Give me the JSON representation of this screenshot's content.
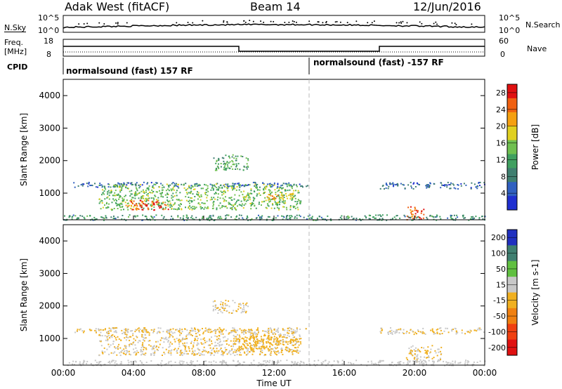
{
  "header": {
    "title": "Adak West (fitACF)",
    "beam": "Beam 14",
    "date": "12/Jun/2016"
  },
  "noise_panel": {
    "left_label": "N.Sky",
    "right_label": "N.Search",
    "tick_high": "10^5",
    "tick_low": "10^0",
    "right_tick_high": "10^5",
    "right_tick_low": "10^0"
  },
  "freq_panel": {
    "left_label_line1": "Freq.",
    "left_label_line2": "[MHz]",
    "tick_high": "18",
    "tick_low": "8",
    "right_label": "Nave",
    "right_tick_high": "60",
    "right_tick_low": "0"
  },
  "cpid_panel": {
    "label": "CPID",
    "mode1": "normalsound (fast) 157 RF",
    "mode2": "normalsound (fast) -157 RF"
  },
  "chart_data": [
    {
      "type": "heatmap",
      "title": "Power [dB]",
      "ylabel": "Slant Range [km]",
      "ylim": [
        180,
        4500
      ],
      "yticks": [
        "1000",
        "2000",
        "3000",
        "4000"
      ],
      "xlabel": "Time UT",
      "xticks": [
        "00:00",
        "04:00",
        "08:00",
        "12:00",
        "16:00",
        "20:00",
        "00:00"
      ],
      "colorbar": {
        "label": "Power [dB]",
        "ticks": [
          "4",
          "8",
          "12",
          "16",
          "20",
          "24",
          "28"
        ],
        "range": [
          0,
          30
        ],
        "colors": [
          "#1f2fd0",
          "#3060c0",
          "#3f7f70",
          "#40a060",
          "#70c050",
          "#e0d020",
          "#f5a010",
          "#f06010",
          "#e01010"
        ]
      },
      "scatter_regions": [
        {
          "t_start": 0.5,
          "t_end": 13.9,
          "range_lo": 1200,
          "range_hi": 1350,
          "value": 6
        },
        {
          "t_start": 2.0,
          "t_end": 13.5,
          "range_lo": 500,
          "range_hi": 1300,
          "value": 14
        },
        {
          "t_start": 3.5,
          "t_end": 6.0,
          "range_lo": 500,
          "range_hi": 800,
          "value": 26
        },
        {
          "t_start": 11.5,
          "t_end": 13.3,
          "range_lo": 800,
          "range_hi": 1000,
          "value": 20
        },
        {
          "t_start": 8.5,
          "t_end": 10.5,
          "range_lo": 1700,
          "range_hi": 2200,
          "value": 12
        },
        {
          "t_start": 18.0,
          "t_end": 24.0,
          "range_lo": 1150,
          "range_hi": 1350,
          "value": 6
        },
        {
          "t_start": 19.5,
          "t_end": 20.5,
          "range_lo": 200,
          "range_hi": 600,
          "value": 26
        },
        {
          "t_start": 0.0,
          "t_end": 24.0,
          "range_lo": 180,
          "range_hi": 350,
          "value": 10
        }
      ]
    },
    {
      "type": "heatmap",
      "title": "Velocity [m s-1]",
      "ylabel": "Slant Range [km]",
      "ylim": [
        180,
        4500
      ],
      "yticks": [
        "1000",
        "2000",
        "3000",
        "4000"
      ],
      "xlabel": "Time UT",
      "xticks": [
        "00:00",
        "04:00",
        "08:00",
        "12:00",
        "16:00",
        "20:00",
        "00:00"
      ],
      "colorbar": {
        "label": "Velocity [m s-1]",
        "ticks": [
          "200",
          "100",
          "50",
          "15",
          "-15",
          "-50",
          "-100",
          "-200"
        ],
        "range": [
          -250,
          250
        ],
        "colors": [
          "#2030c0",
          "#3f7f70",
          "#60c040",
          "#c8c8c8",
          "#f0b020",
          "#f08010",
          "#f04010",
          "#e01010"
        ]
      },
      "scatter_regions": [
        {
          "t_start": 0.5,
          "t_end": 13.9,
          "range_lo": 1200,
          "range_hi": 1350,
          "value": 0
        },
        {
          "t_start": 2.0,
          "t_end": 13.5,
          "range_lo": 500,
          "range_hi": 1300,
          "value": 0
        },
        {
          "t_start": 9.5,
          "t_end": 13.5,
          "range_lo": 600,
          "range_hi": 1100,
          "value": -30
        },
        {
          "t_start": 8.5,
          "t_end": 10.5,
          "range_lo": 1800,
          "range_hi": 2200,
          "value": 0
        },
        {
          "t_start": 18.0,
          "t_end": 24.0,
          "range_lo": 1150,
          "range_hi": 1350,
          "value": 0
        },
        {
          "t_start": 19.5,
          "t_end": 21.5,
          "range_lo": 300,
          "range_hi": 800,
          "value": 0
        },
        {
          "t_start": 0.0,
          "t_end": 24.0,
          "range_lo": 180,
          "range_hi": 350,
          "value": 30
        }
      ]
    }
  ]
}
